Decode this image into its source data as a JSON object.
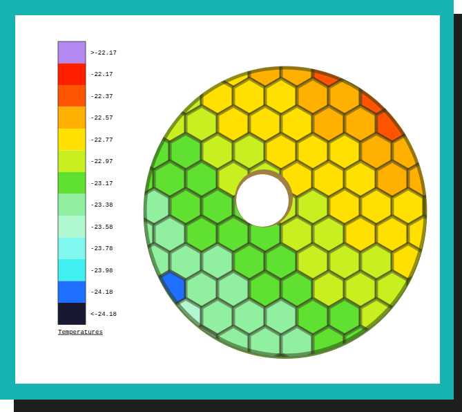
{
  "chart_data": {
    "type": "heatmap",
    "title": "Temperatures",
    "colorbar": {
      "ticks": [
        {
          "value": -22.17,
          "label": ">-22.17"
        },
        -22.17,
        -22.37,
        -22.57,
        -22.77,
        -22.97,
        -23.17,
        -23.38,
        -23.58,
        -23.78,
        -23.98,
        -24.18,
        {
          "value": -24.18,
          "label": "<-24.18"
        }
      ],
      "colors": [
        "#b388f0",
        "#ff2000",
        "#ff5500",
        "#ffb000",
        "#ffe000",
        "#c8f020",
        "#60e030",
        "#90f0a0",
        "#b0f8d0",
        "#80f8f0",
        "#40f0f0",
        "#2070ff",
        "#181830"
      ]
    },
    "cells": [
      [
        -23.04,
        -22.96,
        -22.88,
        -22.8,
        -22.72,
        -22.64,
        -22.56,
        -22.48,
        -22.4,
        -22.32
      ],
      [
        -23.11,
        -23.03,
        -22.95,
        -22.87,
        -22.79,
        -22.71,
        -22.63,
        -22.55,
        -22.47,
        -22.39
      ],
      [
        -23.19,
        -23.11,
        -23.03,
        -22.95,
        -22.87,
        -22.79,
        -22.71,
        -22.63,
        -22.55,
        -22.47
      ],
      [
        -23.26,
        -23.18,
        -23.1,
        -23.02,
        -22.94,
        -22.86,
        -22.78,
        -22.7,
        -22.62,
        -22.54
      ],
      [
        -23.34,
        -23.26,
        -23.18,
        -23.1,
        -23.02,
        -22.94,
        -22.86,
        -22.78,
        -22.7,
        -22.62
      ],
      [
        -23.41,
        -23.33,
        -23.25,
        -23.17,
        -23.09,
        -23.01,
        -22.93,
        -22.85,
        -22.77,
        -22.69
      ],
      [
        -23.49,
        -23.41,
        -23.33,
        -23.25,
        -23.17,
        -23.09,
        -23.01,
        -22.93,
        -22.85,
        -22.77
      ],
      [
        -23.56,
        -23.48,
        -23.4,
        -23.32,
        -23.24,
        -23.16,
        -23.08,
        -23.0,
        -22.92,
        -22.84
      ],
      [
        -23.64,
        -24.18,
        -23.48,
        -23.4,
        -23.32,
        -23.24,
        -23.16,
        -23.08,
        -23.0,
        -22.92
      ],
      [
        -23.71,
        -23.63,
        -23.55,
        -23.47,
        -23.39,
        -23.31,
        -23.23,
        -23.15,
        -23.07,
        -22.99
      ],
      [
        -23.79,
        -23.71,
        -23.63,
        -23.55,
        -23.47,
        -23.39,
        -23.31,
        -23.23,
        -23.15,
        -23.07
      ]
    ]
  }
}
